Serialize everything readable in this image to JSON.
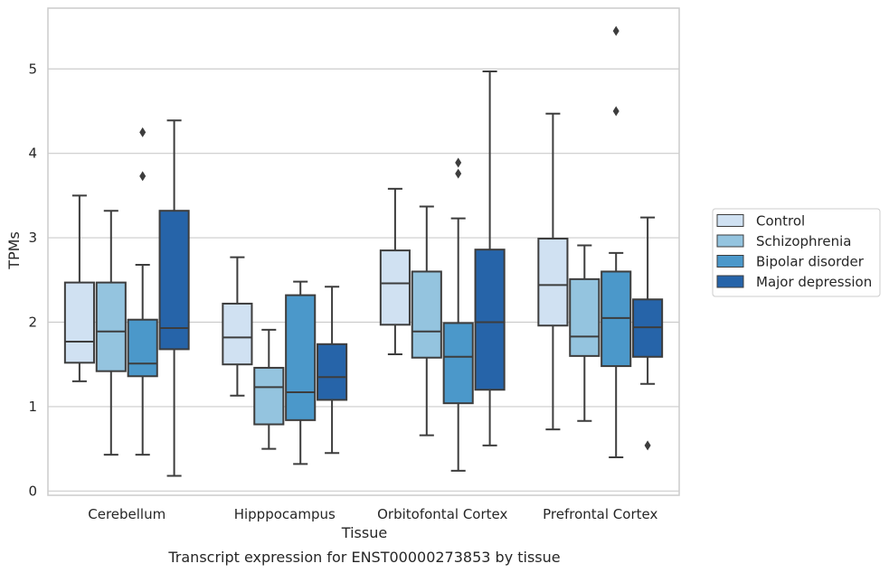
{
  "chart_data": {
    "type": "box",
    "xlabel": "Tissue",
    "ylabel": "TPMs",
    "caption": "Transcript expression for ENST00000273853 by tissue",
    "ylim": [
      -0.05,
      5.72
    ],
    "yticks": [
      0,
      1,
      2,
      3,
      4,
      5
    ],
    "grid": "horizontal",
    "legend_position": "right",
    "categories": [
      "Cerebellum",
      "Hipppocampus",
      "Orbitofontal Cortex",
      "Prefrontal Cortex"
    ],
    "series": [
      {
        "name": "Control",
        "color": "#d0e1f2",
        "boxes": [
          {
            "whislo": 1.3,
            "q1": 1.52,
            "med": 1.77,
            "q3": 2.47,
            "whishi": 3.5,
            "fliers": []
          },
          {
            "whislo": 1.13,
            "q1": 1.5,
            "med": 1.82,
            "q3": 2.22,
            "whishi": 2.77,
            "fliers": []
          },
          {
            "whislo": 1.62,
            "q1": 1.97,
            "med": 2.46,
            "q3": 2.85,
            "whishi": 3.58,
            "fliers": []
          },
          {
            "whislo": 0.73,
            "q1": 1.96,
            "med": 2.44,
            "q3": 2.99,
            "whishi": 4.47,
            "fliers": []
          }
        ]
      },
      {
        "name": "Schizophrenia",
        "color": "#94c4df",
        "boxes": [
          {
            "whislo": 0.43,
            "q1": 1.42,
            "med": 1.89,
            "q3": 2.47,
            "whishi": 3.32,
            "fliers": []
          },
          {
            "whislo": 0.5,
            "q1": 0.79,
            "med": 1.23,
            "q3": 1.46,
            "whishi": 1.91,
            "fliers": []
          },
          {
            "whislo": 0.66,
            "q1": 1.58,
            "med": 1.89,
            "q3": 2.6,
            "whishi": 3.37,
            "fliers": []
          },
          {
            "whislo": 0.83,
            "q1": 1.6,
            "med": 1.83,
            "q3": 2.51,
            "whishi": 2.91,
            "fliers": []
          }
        ]
      },
      {
        "name": "Bipolar disorder",
        "color": "#4b98ca",
        "boxes": [
          {
            "whislo": 0.43,
            "q1": 1.36,
            "med": 1.51,
            "q3": 2.03,
            "whishi": 2.68,
            "fliers": [
              3.73,
              4.25
            ]
          },
          {
            "whislo": 0.32,
            "q1": 0.84,
            "med": 1.17,
            "q3": 2.32,
            "whishi": 2.48,
            "fliers": []
          },
          {
            "whislo": 0.24,
            "q1": 1.04,
            "med": 1.59,
            "q3": 1.99,
            "whishi": 3.23,
            "fliers": [
              3.76,
              3.89
            ]
          },
          {
            "whislo": 0.4,
            "q1": 1.48,
            "med": 2.05,
            "q3": 2.6,
            "whishi": 2.82,
            "fliers": [
              4.5,
              5.45
            ]
          }
        ]
      },
      {
        "name": "Major depression",
        "color": "#2664a9",
        "boxes": [
          {
            "whislo": 0.18,
            "q1": 1.68,
            "med": 1.93,
            "q3": 3.32,
            "whishi": 4.39,
            "fliers": []
          },
          {
            "whislo": 0.45,
            "q1": 1.08,
            "med": 1.35,
            "q3": 1.74,
            "whishi": 2.42,
            "fliers": []
          },
          {
            "whislo": 0.54,
            "q1": 1.2,
            "med": 2.0,
            "q3": 2.86,
            "whishi": 4.97,
            "fliers": []
          },
          {
            "whislo": 1.27,
            "q1": 1.59,
            "med": 1.94,
            "q3": 2.27,
            "whishi": 3.24,
            "fliers": [
              0.54
            ]
          }
        ]
      }
    ]
  }
}
